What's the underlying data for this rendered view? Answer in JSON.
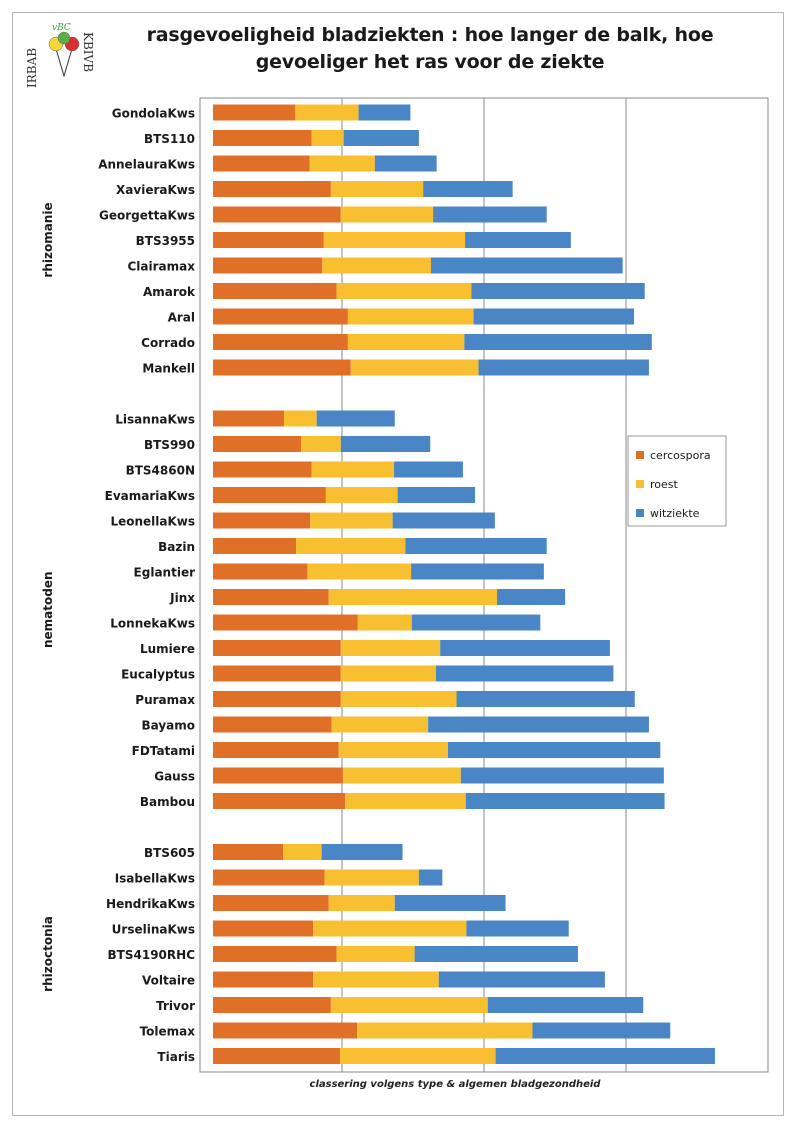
{
  "title_lines": [
    "rasgevoeligheid bladziekten : hoe langer de balk, hoe",
    "gevoeliger het ras voor de ziekte"
  ],
  "logo": {
    "text_left": "IRBAB",
    "text_top": "vBC",
    "text_right": "KBIVB"
  },
  "caption": "classering volgens type & algemen bladgezondheid",
  "colors": {
    "cercospora": "#e07028",
    "roest": "#f8c030",
    "witziekte": "#4a86c6"
  },
  "chart_data": {
    "type": "bar",
    "orientation": "horizontal",
    "stacked": true,
    "legend_position": "right-middle",
    "grid": true,
    "series": [
      {
        "name": "cercospora",
        "color": "#e07028"
      },
      {
        "name": "roest",
        "color": "#f8c030"
      },
      {
        "name": "witziekte",
        "color": "#4a86c6"
      }
    ],
    "groups": [
      {
        "name": "rhizomanie",
        "items": [
          {
            "label": "GondolaKws",
            "values": [
              1.16,
              0.89,
              0.73
            ]
          },
          {
            "label": "BTS110",
            "values": [
              1.39,
              0.45,
              1.06
            ]
          },
          {
            "label": "AnnelauraKws",
            "values": [
              1.36,
              0.92,
              0.87
            ]
          },
          {
            "label": "XavieraKws",
            "values": [
              1.66,
              1.3,
              1.26
            ]
          },
          {
            "label": "GeorgettaKws",
            "values": [
              1.8,
              1.3,
              1.6
            ]
          },
          {
            "label": "BTS3955",
            "values": [
              1.56,
              1.99,
              1.49
            ]
          },
          {
            "label": "Clairamax",
            "values": [
              1.54,
              1.53,
              2.7
            ]
          },
          {
            "label": "Amarok",
            "values": [
              1.74,
              1.9,
              2.44
            ]
          },
          {
            "label": "Aral",
            "values": [
              1.9,
              1.77,
              2.26
            ]
          },
          {
            "label": "Corrado",
            "values": [
              1.9,
              1.64,
              2.64
            ]
          },
          {
            "label": "Mankell",
            "values": [
              1.94,
              1.8,
              2.4
            ]
          }
        ]
      },
      {
        "name": "nematoden",
        "items": [
          {
            "label": "LisannaKws",
            "values": [
              1.0,
              0.46,
              1.1
            ]
          },
          {
            "label": "BTS990",
            "values": [
              1.24,
              0.56,
              1.26
            ]
          },
          {
            "label": "BTS4860N",
            "values": [
              1.39,
              1.16,
              0.97
            ]
          },
          {
            "label": "EvamariaKws",
            "values": [
              1.59,
              1.01,
              1.09
            ]
          },
          {
            "label": "LeonellaKws",
            "values": [
              1.37,
              1.16,
              1.44
            ]
          },
          {
            "label": "Bazin",
            "values": [
              1.17,
              1.54,
              1.99
            ]
          },
          {
            "label": "Eglantier",
            "values": [
              1.33,
              1.46,
              1.87
            ]
          },
          {
            "label": "Jinx",
            "values": [
              1.63,
              2.37,
              0.96
            ]
          },
          {
            "label": "LonnekaKws",
            "values": [
              2.04,
              0.76,
              1.81
            ]
          },
          {
            "label": "Lumiere",
            "values": [
              1.8,
              1.4,
              2.39
            ]
          },
          {
            "label": "Eucalyptus",
            "values": [
              1.8,
              1.34,
              2.5
            ]
          },
          {
            "label": "Puramax",
            "values": [
              1.8,
              1.63,
              2.51
            ]
          },
          {
            "label": "Bayamo",
            "values": [
              1.67,
              1.36,
              3.11
            ]
          },
          {
            "label": "FDTatami",
            "values": [
              1.77,
              1.54,
              2.99
            ]
          },
          {
            "label": "Gauss",
            "values": [
              1.83,
              1.66,
              2.86
            ]
          },
          {
            "label": "Bambou",
            "values": [
              1.86,
              1.7,
              2.8
            ]
          }
        ]
      },
      {
        "name": "rhizoctonia",
        "items": [
          {
            "label": "BTS605",
            "values": [
              0.99,
              0.54,
              1.14
            ]
          },
          {
            "label": "IsabellaKws",
            "values": [
              1.57,
              1.33,
              0.33
            ]
          },
          {
            "label": "HendrikaKws",
            "values": [
              1.63,
              0.93,
              1.56
            ]
          },
          {
            "label": "UrselinaKws",
            "values": [
              1.41,
              2.16,
              1.44
            ]
          },
          {
            "label": "BTS4190RHC",
            "values": [
              1.74,
              1.1,
              2.3
            ]
          },
          {
            "label": "Voltaire",
            "values": [
              1.41,
              1.77,
              2.34
            ]
          },
          {
            "label": "Trivor",
            "values": [
              1.66,
              2.21,
              2.19
            ]
          },
          {
            "label": "Tolemax",
            "values": [
              2.03,
              2.47,
              1.94
            ]
          },
          {
            "label": "Tiaris",
            "values": [
              1.79,
              2.19,
              3.09
            ]
          }
        ]
      }
    ],
    "xlim": [
      0,
      7.5
    ]
  }
}
